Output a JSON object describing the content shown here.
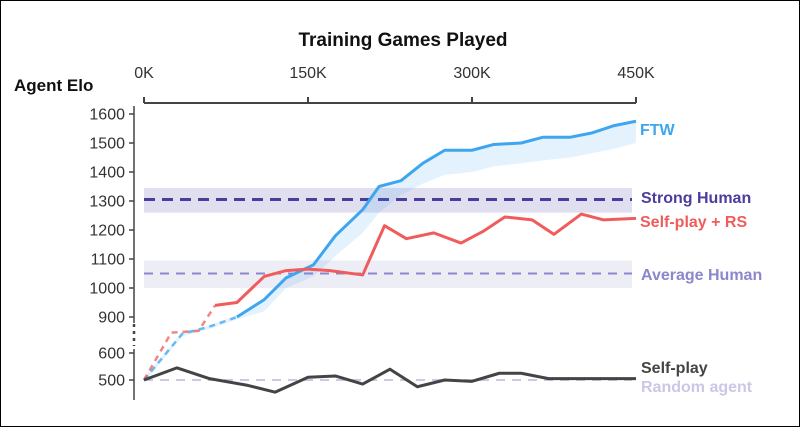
{
  "chart_data": {
    "type": "line",
    "title": "Training Games Played",
    "xlabel": "Training Games Played",
    "ylabel": "Agent Elo",
    "x_ticks": [
      "0K",
      "150K",
      "300K",
      "450K"
    ],
    "y_ticks": [
      "500",
      "600",
      "900",
      "1000",
      "1100",
      "1200",
      "1300",
      "1400",
      "1500",
      "1600"
    ],
    "xlim": [
      0,
      450000
    ],
    "y_axis_break": "between 600 and 900",
    "series": [
      {
        "name": "FTW",
        "color": "#3ea6ee",
        "x": [
          0,
          35000,
          60000,
          85000,
          110000,
          130000,
          155000,
          175000,
          200000,
          215000,
          235000,
          255000,
          275000,
          300000,
          320000,
          345000,
          365000,
          390000,
          410000,
          430000,
          450000
        ],
        "y": [
          500,
          760,
          820,
          900,
          960,
          1035,
          1080,
          1180,
          1270,
          1350,
          1370,
          1430,
          1475,
          1475,
          1495,
          1500,
          1520,
          1520,
          1535,
          1560,
          1575
        ],
        "band_upper": [
          510,
          770,
          830,
          905,
          960,
          1035,
          1080,
          1180,
          1270,
          1350,
          1370,
          1430,
          1475,
          1475,
          1495,
          1500,
          1520,
          1520,
          1535,
          1560,
          1575
        ],
        "band_lower": [
          490,
          740,
          800,
          880,
          920,
          1000,
          1040,
          1110,
          1190,
          1260,
          1320,
          1360,
          1390,
          1400,
          1420,
          1430,
          1440,
          1450,
          1465,
          1480,
          1500
        ],
        "dashed_below_x": 75000
      },
      {
        "name": "Self-play + RS",
        "color": "#f05c5c",
        "x": [
          0,
          25000,
          50000,
          65000,
          85000,
          110000,
          130000,
          150000,
          170000,
          200000,
          220000,
          240000,
          265000,
          290000,
          310000,
          330000,
          355000,
          375000,
          400000,
          420000,
          450000
        ],
        "y": [
          500,
          770,
          785,
          940,
          950,
          1040,
          1060,
          1065,
          1060,
          1045,
          1215,
          1170,
          1190,
          1155,
          1195,
          1245,
          1235,
          1185,
          1255,
          1235,
          1240
        ],
        "dashed_below_x": 55000
      },
      {
        "name": "Self-play",
        "color": "#444444",
        "x": [
          0,
          30000,
          60000,
          95000,
          120000,
          150000,
          175000,
          200000,
          225000,
          250000,
          275000,
          300000,
          325000,
          345000,
          370000,
          395000,
          420000,
          440000,
          450000
        ],
        "y": [
          500,
          545,
          505,
          480,
          455,
          510,
          515,
          485,
          540,
          475,
          500,
          495,
          525,
          525,
          505,
          505,
          505,
          505,
          505
        ]
      }
    ],
    "reference_lines": [
      {
        "name": "Strong Human",
        "value": 1305,
        "band": [
          1260,
          1345
        ],
        "color": "#4a3d9e",
        "band_color": "#dcdcee"
      },
      {
        "name": "Average Human",
        "value": 1050,
        "band": [
          1000,
          1095
        ],
        "color": "#8c86cc",
        "band_color": "#ebebf4"
      },
      {
        "name": "Random agent",
        "value": 500,
        "color": "#cbc7e6"
      }
    ]
  }
}
